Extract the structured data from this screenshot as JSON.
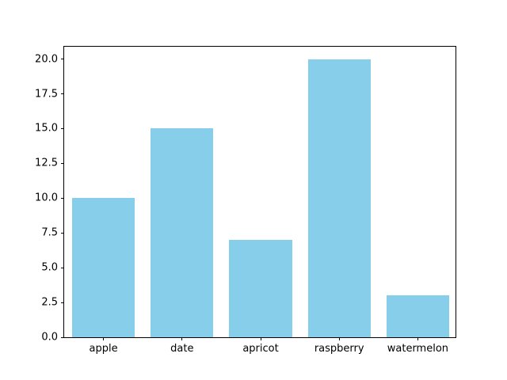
{
  "chart_data": {
    "type": "bar",
    "categories": [
      "apple",
      "date",
      "apricot",
      "raspberry",
      "watermelon"
    ],
    "values": [
      10,
      15,
      7,
      20,
      3
    ],
    "title": "",
    "xlabel": "",
    "ylabel": "",
    "ylim": [
      0,
      21
    ],
    "yticks": [
      0.0,
      2.5,
      5.0,
      7.5,
      10.0,
      12.5,
      15.0,
      17.5,
      20.0
    ],
    "ytick_labels": [
      "0.0",
      "2.5",
      "5.0",
      "7.5",
      "10.0",
      "12.5",
      "15.0",
      "17.5",
      "20.0"
    ],
    "bar_color": "#87ceeb",
    "bar_width_fraction": 0.8,
    "grid": false,
    "legend": null,
    "background_color": "#ffffff",
    "spine_color": "#000000",
    "tick_color": "#000000"
  }
}
